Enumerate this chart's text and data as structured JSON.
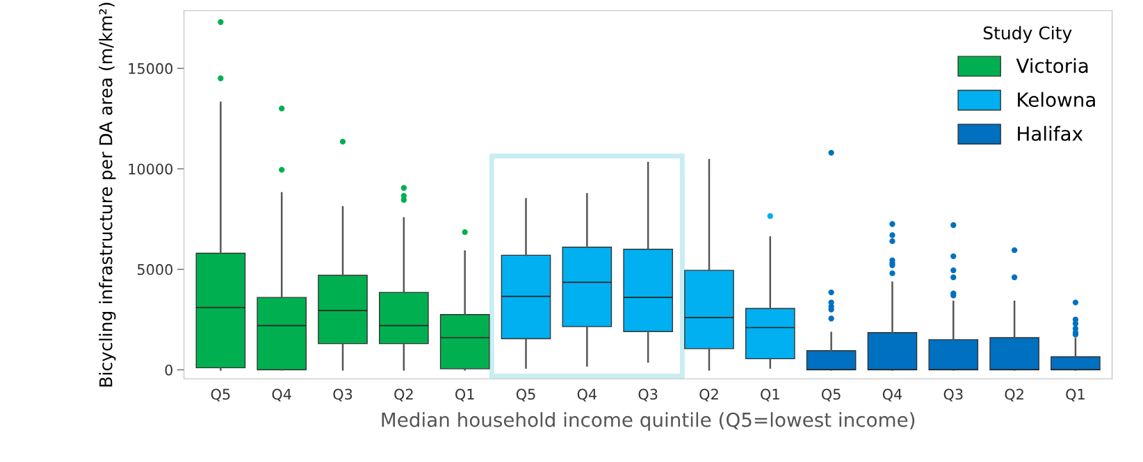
{
  "chart_data": {
    "type": "box",
    "xlabel": "Median household income quintile (Q5=lowest income)",
    "ylabel": "Bicycling infrastructure per DA area (m/km²)",
    "legend_title": "Study City",
    "legend": "top right",
    "grid": false,
    "categories": [
      "Q5",
      "Q4",
      "Q3",
      "Q2",
      "Q1",
      "Q5",
      "Q4",
      "Q3",
      "Q2",
      "Q1",
      "Q5",
      "Q4",
      "Q3",
      "Q2",
      "Q1"
    ],
    "ylim": [
      -450,
      17870
    ],
    "yticks": [
      0,
      5000,
      10000,
      15000
    ],
    "series": [
      {
        "name": "Victoria",
        "color": "#00b050",
        "boxes": [
          {
            "low": 0,
            "q1": 100,
            "median": 3100,
            "q3": 5800,
            "high": 13300,
            "outliers": [
              17300,
              14500
            ]
          },
          {
            "low": 0,
            "q1": 0,
            "median": 2200,
            "q3": 3600,
            "high": 8800,
            "outliers": [
              13000,
              9950
            ]
          },
          {
            "low": 0,
            "q1": 1300,
            "median": 2950,
            "q3": 4700,
            "high": 8100,
            "outliers": [
              11350
            ]
          },
          {
            "low": 0,
            "q1": 1300,
            "median": 2200,
            "q3": 3850,
            "high": 7550,
            "outliers": [
              9050,
              8650,
              8450
            ]
          },
          {
            "low": 0,
            "q1": 50,
            "median": 1600,
            "q3": 2750,
            "high": 5900,
            "outliers": [
              6850
            ]
          },
          null,
          null,
          null,
          null,
          null,
          null,
          null,
          null,
          null,
          null
        ]
      },
      {
        "name": "Kelowna",
        "color": "#00b0f0",
        "boxes": [
          null,
          null,
          null,
          null,
          null,
          {
            "low": 100,
            "q1": 1550,
            "median": 3650,
            "q3": 5700,
            "high": 8500
          },
          {
            "low": 200,
            "q1": 2150,
            "median": 4350,
            "q3": 6100,
            "high": 8750
          },
          {
            "low": 400,
            "q1": 1900,
            "median": 3600,
            "q3": 6000,
            "high": 10300
          },
          {
            "low": 0,
            "q1": 1050,
            "median": 2600,
            "q3": 4950,
            "high": 10450
          },
          {
            "low": 100,
            "q1": 550,
            "median": 2100,
            "q3": 3050,
            "high": 6600,
            "outliers": [
              7650
            ]
          },
          null,
          null,
          null,
          null,
          null
        ]
      },
      {
        "name": "Halifax",
        "color": "#0070c0",
        "boxes": [
          null,
          null,
          null,
          null,
          null,
          null,
          null,
          null,
          null,
          null,
          {
            "low": 0,
            "q1": 0,
            "median": 0,
            "q3": 950,
            "high": 1850,
            "outliers": [
              10800,
              3850,
              3350,
              3150,
              3000,
              2550
            ]
          },
          {
            "low": 0,
            "q1": 0,
            "median": 0,
            "q3": 1850,
            "high": 4350,
            "outliers": [
              7250,
              6700,
              6400,
              5450,
              5300,
              5200,
              4800
            ]
          },
          {
            "low": 0,
            "q1": 0,
            "median": 0,
            "q3": 1500,
            "high": 3400,
            "outliers": [
              7200,
              5650,
              4950,
              4600,
              3800,
              3700
            ]
          },
          {
            "low": 0,
            "q1": 0,
            "median": 0,
            "q3": 1600,
            "high": 3400,
            "outliers": [
              5950,
              4600
            ]
          },
          {
            "low": 0,
            "q1": 0,
            "median": 0,
            "q3": 650,
            "high": 1550,
            "outliers": [
              3350,
              2500,
              2300,
              2050,
              1850,
              1750
            ]
          }
        ]
      }
    ]
  }
}
